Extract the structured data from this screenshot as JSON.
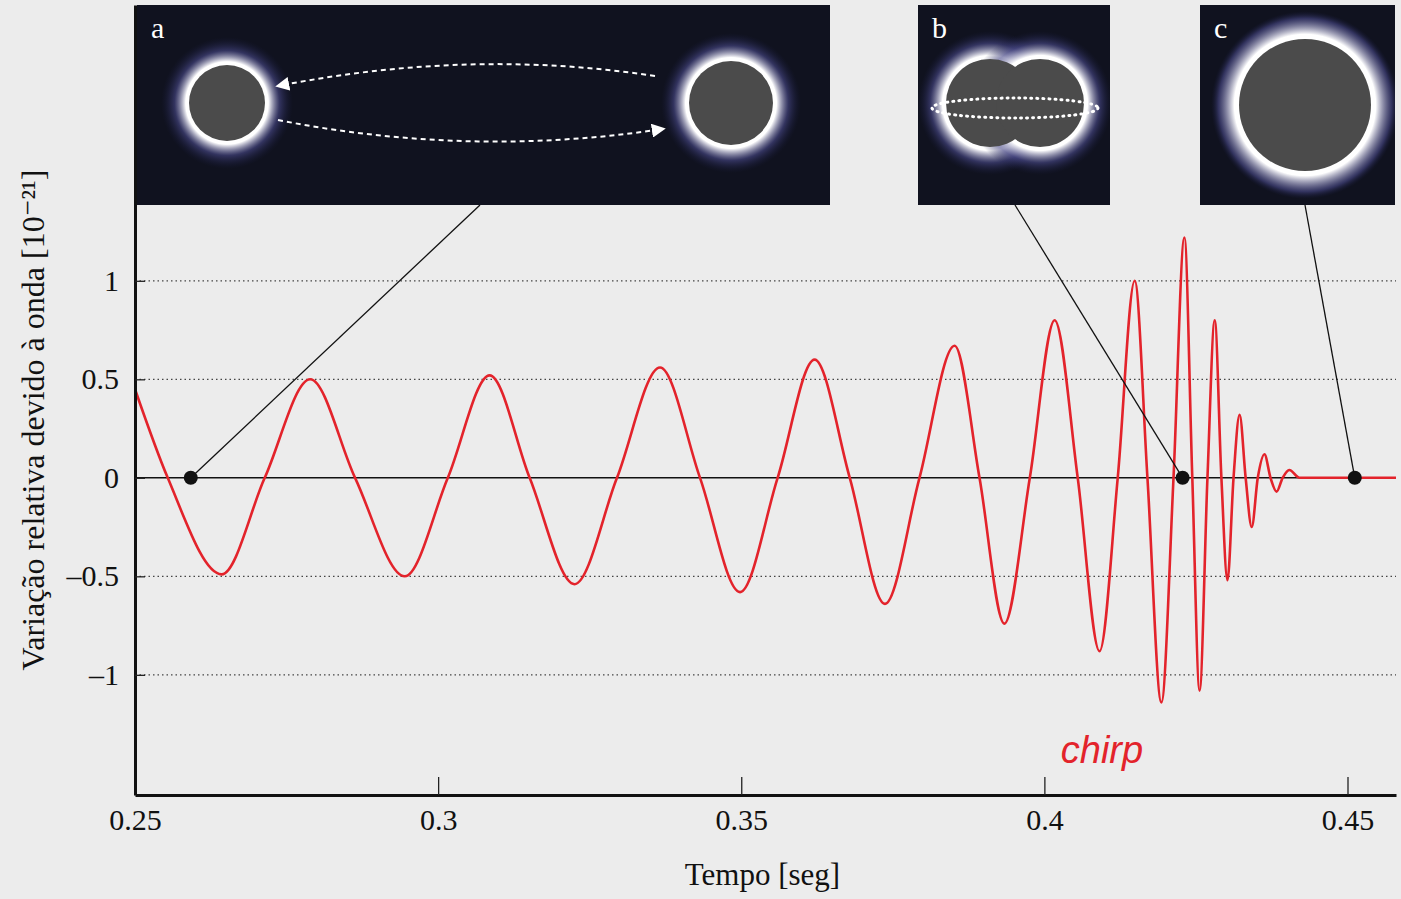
{
  "chart_data": {
    "type": "line",
    "x_label": "Tempo [seg]",
    "y_label": "Variação relativa devido à onda [10⁻²¹]",
    "color": "#e3232b",
    "grid": true,
    "xlim": [
      0.25,
      0.458
    ],
    "ylim": [
      -1.61,
      2.4
    ],
    "xticks": [
      0.25,
      0.3,
      0.35,
      0.4,
      0.45
    ],
    "yticks": [
      {
        "value": -1,
        "label": "–1"
      },
      {
        "value": -0.5,
        "label": "–0.5"
      },
      0,
      0.5,
      1
    ],
    "x": [
      0.25,
      0.2554,
      0.2643,
      0.2714,
      0.2789,
      0.2863,
      0.2945,
      0.3016,
      0.3085,
      0.3151,
      0.3225,
      0.3295,
      0.3366,
      0.3432,
      0.3498,
      0.356,
      0.3621,
      0.3679,
      0.3737,
      0.3794,
      0.3852,
      0.3893,
      0.3934,
      0.3976,
      0.4017,
      0.4055,
      0.4091,
      0.4121,
      0.4149,
      0.417,
      0.4193,
      0.4213,
      0.4231,
      0.4244,
      0.4256,
      0.4269,
      0.4281,
      0.4292,
      0.4302,
      0.4312,
      0.4322,
      0.4332,
      0.4342,
      0.4352,
      0.4363,
      0.4373,
      0.4383,
      0.4393,
      0.4404,
      0.4421,
      0.4454,
      0.458
    ],
    "values": [
      0.45,
      0,
      -0.49,
      0,
      0.5,
      0,
      -0.5,
      0,
      0.52,
      0,
      -0.54,
      0,
      0.56,
      0,
      -0.58,
      0,
      0.6,
      0,
      -0.64,
      0,
      0.67,
      0,
      -0.74,
      0,
      0.8,
      0,
      -0.88,
      0,
      1.0,
      0,
      -1.14,
      0,
      1.22,
      0,
      -1.08,
      0,
      0.8,
      0,
      -0.52,
      0,
      0.32,
      0,
      -0.25,
      0,
      0.12,
      0,
      -0.07,
      0,
      0.04,
      0,
      0,
      0
    ],
    "markers": [
      {
        "label": "a",
        "x": 0.2592,
        "y": 0
      },
      {
        "label": "b",
        "x": 0.4228,
        "y": 0
      },
      {
        "label": "c",
        "x": 0.4512,
        "y": 0
      }
    ],
    "annotations": [
      "chirp"
    ]
  }
}
